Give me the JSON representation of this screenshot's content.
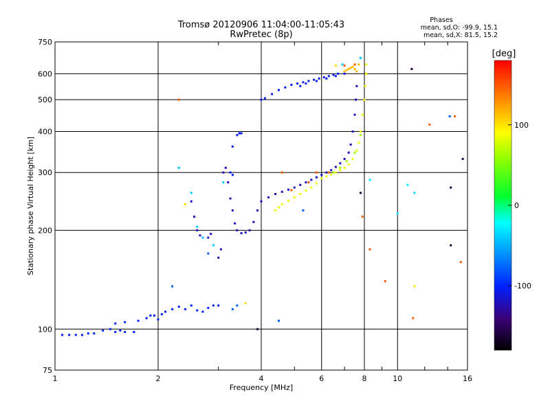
{
  "title": "Tromsø 20120906 11:04:00-11:05:43",
  "subtitle": "RwPretec (8p)",
  "stats": {
    "heading": "Phases",
    "line_o": "mean, sd,O: -99.9, 15.1",
    "line_x": "mean, sd,X:  81.5, 15.2"
  },
  "chart_data": {
    "type": "scatter",
    "xlabel": "Frequency [MHz]",
    "ylabel": "Stationary phase Virtual Height [km]",
    "xscale": "log",
    "yscale": "log",
    "xlim": [
      1,
      16
    ],
    "ylim": [
      75,
      750
    ],
    "xticks": [
      1,
      2,
      4,
      6,
      8,
      10,
      16
    ],
    "xtick_labels": [
      "1",
      "2",
      "4",
      "6",
      "8",
      "10",
      "16"
    ],
    "yticks": [
      75,
      100,
      200,
      300,
      400,
      500,
      600,
      750
    ],
    "ytick_labels": [
      "75",
      "100",
      "200",
      "300",
      "400",
      "500",
      "600",
      "750"
    ],
    "grid": true,
    "colorbar": {
      "label": "[deg]",
      "range": [
        -180,
        180
      ],
      "ticks": [
        -100,
        0,
        100
      ],
      "tick_labels": [
        "-100",
        "0",
        "100"
      ]
    },
    "traces": [
      {
        "phase": -100,
        "points": [
          [
            1.05,
            96
          ],
          [
            1.1,
            96
          ],
          [
            1.15,
            96
          ],
          [
            1.2,
            96
          ],
          [
            1.25,
            97
          ],
          [
            1.3,
            97
          ],
          [
            1.38,
            99
          ],
          [
            1.45,
            100
          ],
          [
            1.5,
            98
          ],
          [
            1.55,
            99
          ],
          [
            1.6,
            98
          ],
          [
            1.7,
            98
          ],
          [
            1.5,
            104
          ],
          [
            1.6,
            105
          ],
          [
            1.75,
            106
          ],
          [
            1.85,
            108
          ],
          [
            1.9,
            110
          ],
          [
            1.95,
            110
          ],
          [
            2.0,
            107
          ],
          [
            2.05,
            111
          ],
          [
            2.1,
            113
          ],
          [
            2.2,
            115
          ],
          [
            2.3,
            117
          ],
          [
            2.4,
            115
          ],
          [
            2.5,
            118
          ],
          [
            2.6,
            114
          ],
          [
            2.7,
            113
          ],
          [
            2.8,
            116
          ],
          [
            2.9,
            118
          ],
          [
            3.0,
            118
          ]
        ]
      },
      {
        "phase": -120,
        "points": [
          [
            2.5,
            245
          ],
          [
            2.55,
            220
          ],
          [
            2.6,
            200
          ],
          [
            2.65,
            193
          ],
          [
            2.7,
            190
          ],
          [
            2.8,
            190
          ],
          [
            2.85,
            195
          ],
          [
            3.0,
            165
          ],
          [
            3.05,
            175
          ],
          [
            3.1,
            300
          ],
          [
            3.15,
            310
          ],
          [
            3.2,
            280
          ],
          [
            3.25,
            250
          ],
          [
            3.3,
            230
          ],
          [
            3.35,
            210
          ],
          [
            3.4,
            200
          ],
          [
            3.5,
            196
          ],
          [
            3.6,
            197
          ],
          [
            3.7,
            200
          ],
          [
            3.8,
            212
          ],
          [
            3.9,
            230
          ],
          [
            4.0,
            245
          ],
          [
            4.2,
            252
          ],
          [
            4.4,
            258
          ],
          [
            4.6,
            262
          ],
          [
            4.8,
            266
          ],
          [
            5.0,
            270
          ],
          [
            5.2,
            275
          ],
          [
            5.4,
            280
          ],
          [
            5.6,
            285
          ],
          [
            5.8,
            290
          ],
          [
            6.0,
            295
          ],
          [
            6.2,
            300
          ],
          [
            6.4,
            305
          ],
          [
            6.6,
            312
          ],
          [
            6.8,
            320
          ],
          [
            7.0,
            330
          ],
          [
            7.2,
            345
          ],
          [
            7.3,
            365
          ],
          [
            7.4,
            400
          ],
          [
            7.5,
            450
          ],
          [
            7.55,
            500
          ],
          [
            7.6,
            550
          ]
        ]
      },
      {
        "phase": -105,
        "points": [
          [
            3.25,
            300
          ],
          [
            3.3,
            295
          ],
          [
            3.4,
            390
          ],
          [
            3.45,
            395
          ],
          [
            3.5,
            395
          ],
          [
            3.3,
            360
          ],
          [
            4.0,
            500
          ],
          [
            4.1,
            505
          ],
          [
            4.3,
            520
          ],
          [
            4.5,
            535
          ],
          [
            4.7,
            545
          ],
          [
            4.9,
            555
          ],
          [
            5.1,
            560
          ],
          [
            5.3,
            565
          ],
          [
            5.5,
            570
          ],
          [
            5.7,
            575
          ],
          [
            5.9,
            580
          ],
          [
            6.1,
            585
          ],
          [
            6.3,
            590
          ],
          [
            6.5,
            595
          ],
          [
            6.7,
            600
          ],
          [
            5.2,
            550
          ],
          [
            5.4,
            560
          ],
          [
            5.8,
            570
          ],
          [
            6.2,
            580
          ],
          [
            6.6,
            590
          ],
          [
            7.0,
            600
          ]
        ]
      },
      {
        "phase": 85,
        "points": [
          [
            4.4,
            230
          ],
          [
            4.5,
            235
          ],
          [
            4.6,
            240
          ],
          [
            4.8,
            246
          ],
          [
            5.0,
            252
          ],
          [
            5.2,
            258
          ],
          [
            5.4,
            264
          ],
          [
            5.6,
            270
          ],
          [
            5.8,
            278
          ],
          [
            6.0,
            288
          ],
          [
            6.2,
            292
          ],
          [
            6.4,
            296
          ],
          [
            6.6,
            300
          ],
          [
            6.8,
            305
          ],
          [
            7.0,
            310
          ],
          [
            7.2,
            318
          ],
          [
            7.4,
            330
          ],
          [
            7.6,
            350
          ],
          [
            7.7,
            370
          ],
          [
            7.8,
            400
          ],
          [
            7.9,
            450
          ],
          [
            8.0,
            500
          ],
          [
            8.05,
            550
          ],
          [
            8.1,
            600
          ],
          [
            8.1,
            640
          ]
        ]
      },
      {
        "phase": 115,
        "points": [
          [
            7.0,
            610
          ],
          [
            7.1,
            615
          ],
          [
            7.2,
            620
          ],
          [
            7.3,
            625
          ],
          [
            7.4,
            630
          ],
          [
            7.5,
            620
          ],
          [
            7.6,
            610
          ],
          [
            7.7,
            640
          ]
        ]
      },
      {
        "phase": 60,
        "points": [
          [
            6.5,
            300
          ],
          [
            6.8,
            310
          ],
          [
            7.1,
            325
          ],
          [
            7.5,
            345
          ],
          [
            7.8,
            390
          ]
        ]
      },
      {
        "phase": -40,
        "points": [
          [
            2.3,
            310
          ],
          [
            2.5,
            260
          ],
          [
            2.6,
            205
          ],
          [
            2.7,
            190
          ],
          [
            2.9,
            180
          ],
          [
            3.1,
            280
          ],
          [
            6.9,
            640
          ],
          [
            7.8,
            670
          ]
        ]
      },
      {
        "phase": 150,
        "points": [
          [
            4.6,
            300
          ],
          [
            4.9,
            265
          ],
          [
            5.5,
            280
          ],
          [
            5.8,
            300
          ],
          [
            6.3,
            300
          ],
          [
            7.0,
            635
          ],
          [
            7.5,
            640
          ],
          [
            7.9,
            220
          ],
          [
            8.3,
            175
          ],
          [
            9.2,
            140
          ],
          [
            11.1,
            108
          ],
          [
            12.4,
            420
          ],
          [
            14.7,
            445
          ],
          [
            15.3,
            160
          ],
          [
            2.3,
            500
          ]
        ]
      },
      {
        "phase": -160,
        "points": [
          [
            7.8,
            260
          ],
          [
            11.0,
            620
          ],
          [
            14.3,
            270
          ],
          [
            14.3,
            180
          ],
          [
            15.5,
            330
          ],
          [
            3.9,
            100
          ]
        ]
      },
      {
        "phase": -30,
        "points": [
          [
            8.3,
            285
          ],
          [
            10.7,
            275
          ],
          [
            11.2,
            260
          ],
          [
            10.0,
            225
          ]
        ]
      },
      {
        "phase": 100,
        "points": [
          [
            3.6,
            120
          ],
          [
            2.4,
            240
          ],
          [
            11.2,
            135
          ],
          [
            6.6,
            635
          ]
        ]
      },
      {
        "phase": -80,
        "points": [
          [
            2.2,
            135
          ],
          [
            2.8,
            170
          ],
          [
            3.4,
            118
          ],
          [
            3.3,
            115
          ],
          [
            4.5,
            106
          ],
          [
            5.3,
            230
          ],
          [
            14.2,
            445
          ]
        ]
      }
    ]
  }
}
